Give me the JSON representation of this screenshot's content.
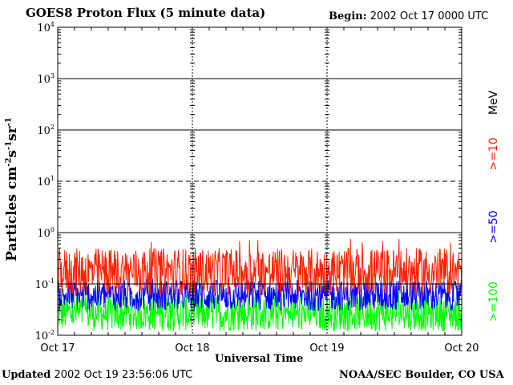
{
  "title": "GOES8 Proton Flux (5 minute data)",
  "begin_label": "Begin:",
  "begin_value": "2002 Oct 17 0000 UTC",
  "updated_label": "Updated",
  "updated_value": "2002 Oct 19 23:56:06 UTC",
  "credit": "NOAA/SEC Boulder, CO USA",
  "chart_data": {
    "type": "line",
    "title": "GOES8 Proton Flux (5 minute data)",
    "xlabel": "Universal Time",
    "ylabel": {
      "main": "Particles cm",
      "s1": "-2",
      "s2": "s",
      "s3": "-1",
      "s4": "sr",
      "s5": "-1"
    },
    "y_scale": "log",
    "ylim": [
      0.01,
      10000
    ],
    "y_ticks": [
      {
        "base": "10",
        "exp": "-2",
        "value": 0.01
      },
      {
        "base": "10",
        "exp": "-1",
        "value": 0.1
      },
      {
        "base": "10",
        "exp": "0",
        "value": 1
      },
      {
        "base": "10",
        "exp": "1",
        "value": 10
      },
      {
        "base": "10",
        "exp": "2",
        "value": 100
      },
      {
        "base": "10",
        "exp": "3",
        "value": 1000
      },
      {
        "base": "10",
        "exp": "4",
        "value": 10000
      }
    ],
    "x_ticks": [
      "Oct 17",
      "Oct 18",
      "Oct 19",
      "Oct 20"
    ],
    "x_range_days": [
      0,
      3
    ],
    "units_label": "MeV",
    "series": [
      {
        "name": ">=10",
        "color": "#ff2000",
        "typical_range": [
          0.06,
          0.5
        ],
        "peak": 0.8
      },
      {
        "name": ">=50",
        "color": "#0000ff",
        "typical_range": [
          0.03,
          0.12
        ],
        "peak": 0.13
      },
      {
        "name": ">=100",
        "color": "#00ff00",
        "typical_range": [
          0.012,
          0.06
        ],
        "peak": 0.07
      }
    ]
  }
}
